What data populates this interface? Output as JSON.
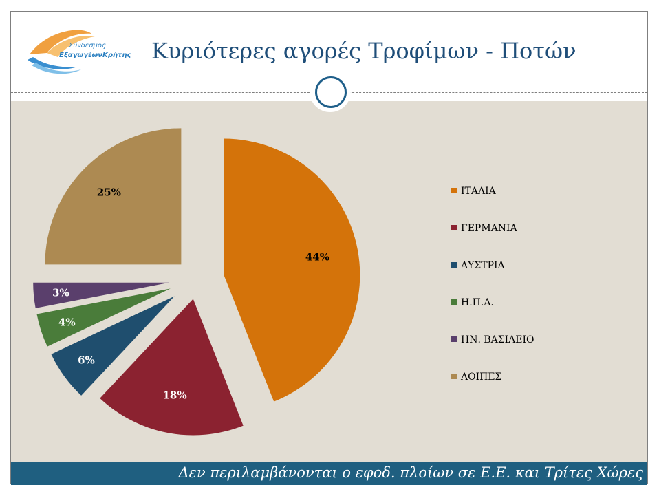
{
  "header": {
    "title": "Κυριότερες αγορές Τροφίμων - Ποτών",
    "logo_line1": "Σύνδεσμος",
    "logo_line2": "ΕξαγωγέωνΚρήτης"
  },
  "footer": {
    "text": "Δεν περιλαμβάνονται ο εφοδ. πλοίων σε Ε.Ε. και Τρίτες Χώρες"
  },
  "colors": {
    "title": "#1f4e79",
    "background": "#e2ddd3",
    "footer": "#1f5f80"
  },
  "chart_data": {
    "type": "pie",
    "exploded": true,
    "legend_position": "right",
    "slices": [
      {
        "label": "ΙΤΑΛΙΑ",
        "value": 44,
        "display": "44%",
        "color": "#d4730a"
      },
      {
        "label": "ΓΕΡΜΑΝΙΑ",
        "value": 18,
        "display": "18%",
        "color": "#8b2230"
      },
      {
        "label": "ΑΥΣΤΡΙΑ",
        "value": 6,
        "display": "6%",
        "color": "#1f4e6e"
      },
      {
        "label": "Η.Π.Α.",
        "value": 4,
        "display": "4%",
        "color": "#4a7c3a"
      },
      {
        "label": "ΗΝ. ΒΑΣΙΛΕΙΟ",
        "value": 3,
        "display": "3%",
        "color": "#5a3f6c"
      },
      {
        "label": "ΛΟΙΠΕΣ",
        "value": 25,
        "display": "25%",
        "color": "#ad8a52"
      }
    ]
  }
}
